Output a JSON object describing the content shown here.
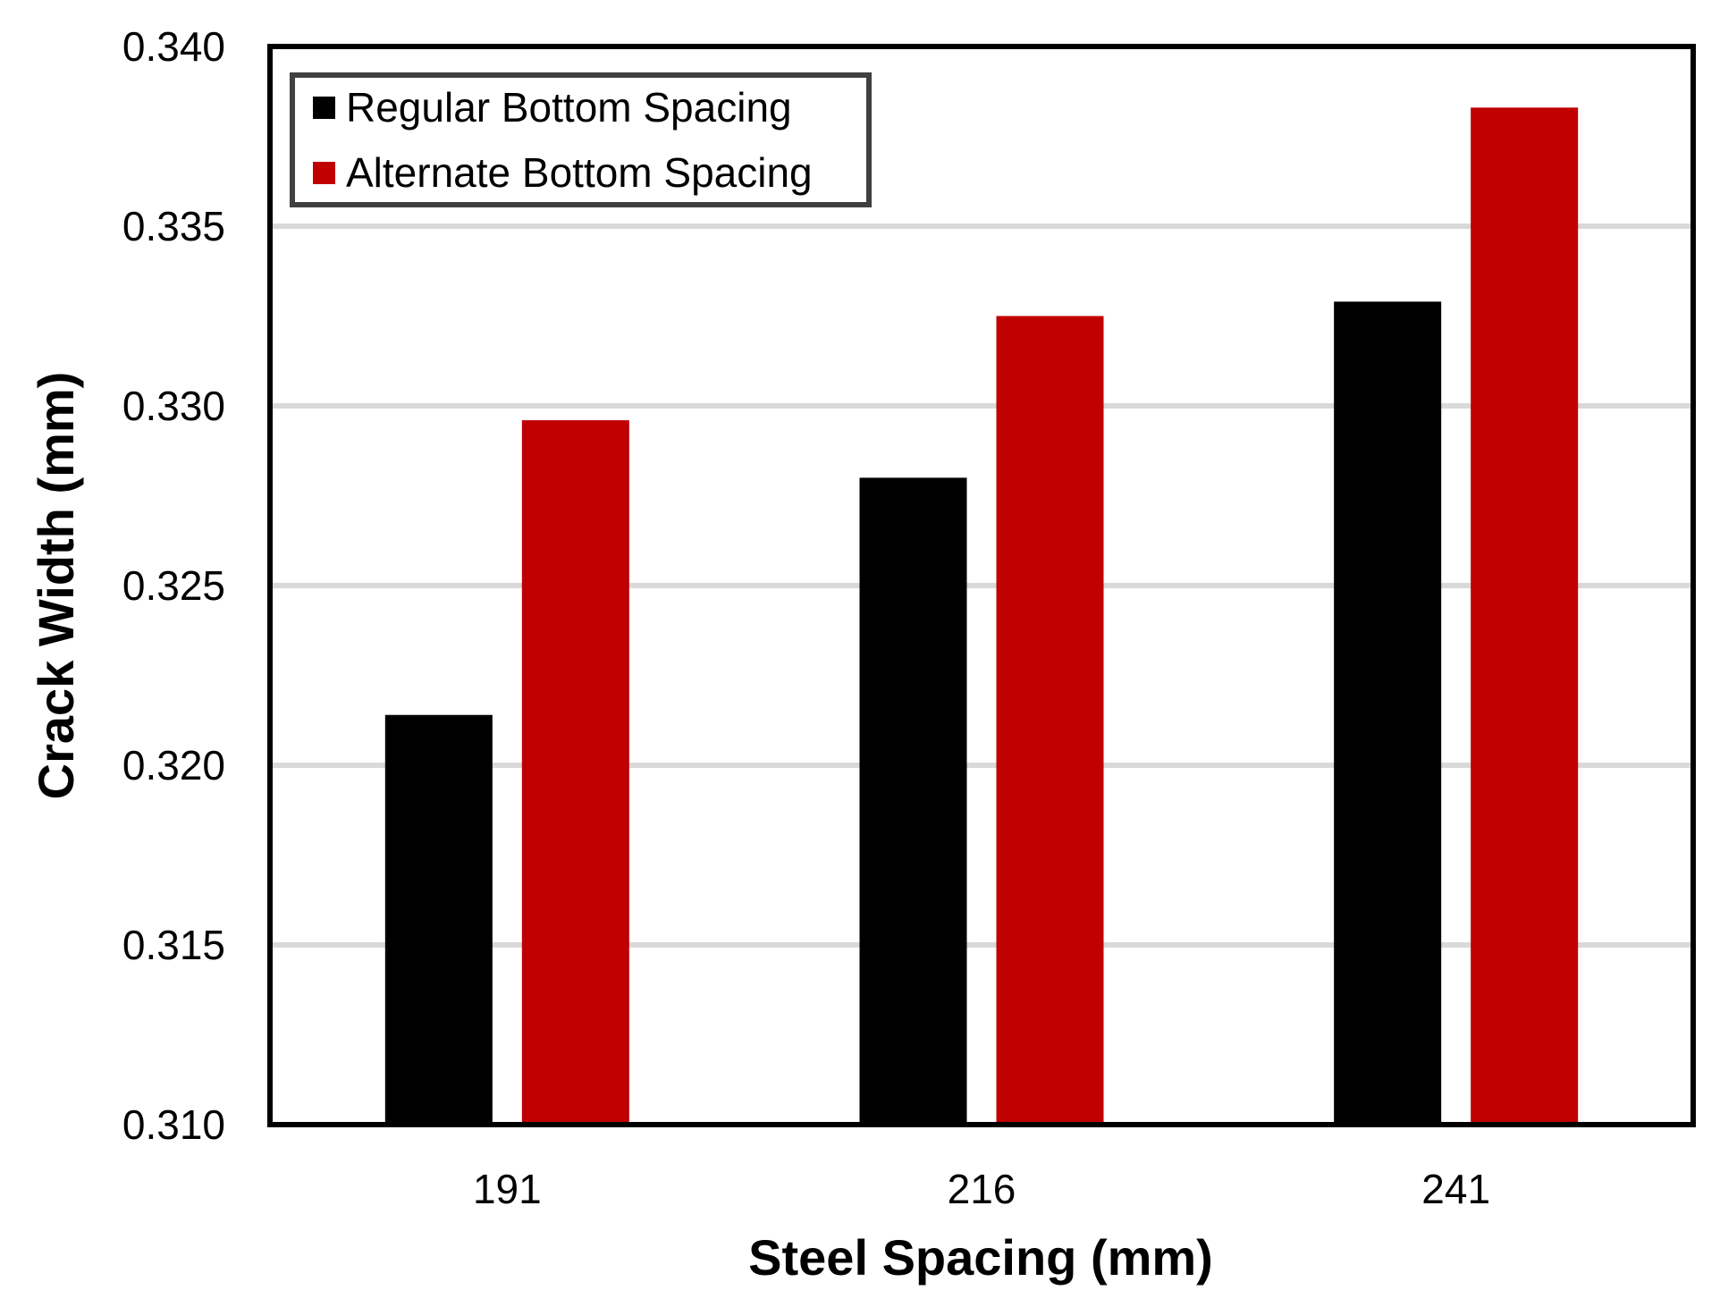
{
  "chart_data": {
    "type": "bar",
    "title": "",
    "xlabel": "Steel Spacing (mm)",
    "ylabel": "Crack Width (mm)",
    "categories": [
      "191",
      "216",
      "241"
    ],
    "series": [
      {
        "name": "Regular Bottom Spacing",
        "color": "#000000",
        "values": [
          0.3214,
          0.328,
          0.3329
        ]
      },
      {
        "name": "Alternate Bottom Spacing",
        "color": "#c00000",
        "values": [
          0.3296,
          0.3325,
          0.3383
        ]
      }
    ],
    "ylim": [
      0.31,
      0.34
    ],
    "yticks": [
      "0.310",
      "0.315",
      "0.320",
      "0.325",
      "0.330",
      "0.335",
      "0.340"
    ],
    "gridlines": true,
    "gridline_color": "#d9d9d9",
    "legend_position": "top-left"
  }
}
